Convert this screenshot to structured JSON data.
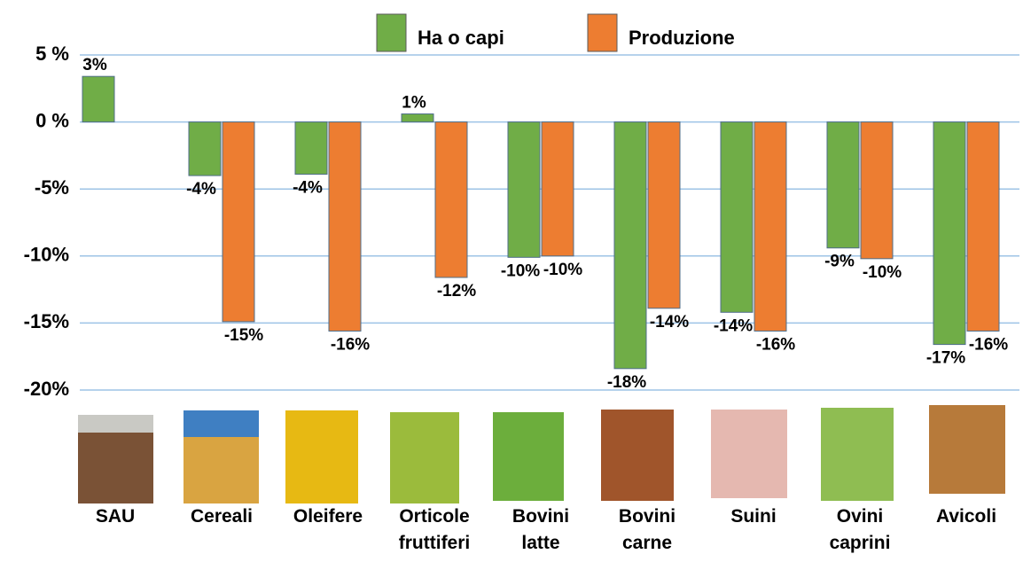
{
  "chart_data": {
    "type": "bar",
    "categories": [
      "SAU",
      "Cereali",
      "Oleifere",
      "Orticole\nfruttiferi",
      "Bovini\nlatte",
      "Bovini\ncarne",
      "Suini",
      "Ovini\ncaprini",
      "Avicoli"
    ],
    "series": [
      {
        "name": "Ha o capi",
        "color": "#70ad47",
        "values": [
          3.4,
          -4,
          -3.9,
          0.6,
          -10.1,
          -18.4,
          -14.2,
          -9.4,
          -16.6
        ],
        "value_labels": [
          "3%",
          "-4%",
          "-4%",
          "1%",
          "-10%",
          "-18%",
          "-14%",
          "-9%",
          "-17%"
        ]
      },
      {
        "name": "Produzione",
        "color": "#ed7d31",
        "values": [
          null,
          -14.9,
          -15.6,
          -11.6,
          -10,
          -13.9,
          -15.6,
          -10.2,
          -15.6
        ],
        "value_labels": [
          null,
          "-15%",
          "-16%",
          "-12%",
          "-10%",
          "-14%",
          "-16%",
          "-10%",
          "-16%"
        ]
      }
    ],
    "ylim": [
      -20,
      5
    ],
    "yticks": [
      {
        "value": -20,
        "label": "-20%"
      },
      {
        "value": -15,
        "label": "-15%"
      },
      {
        "value": -10,
        "label": "-10%"
      },
      {
        "value": -5,
        "label": "-5%"
      },
      {
        "value": 0,
        "label": "0 %"
      },
      {
        "value": 5,
        "label": "5 %"
      }
    ],
    "grid": true
  }
}
